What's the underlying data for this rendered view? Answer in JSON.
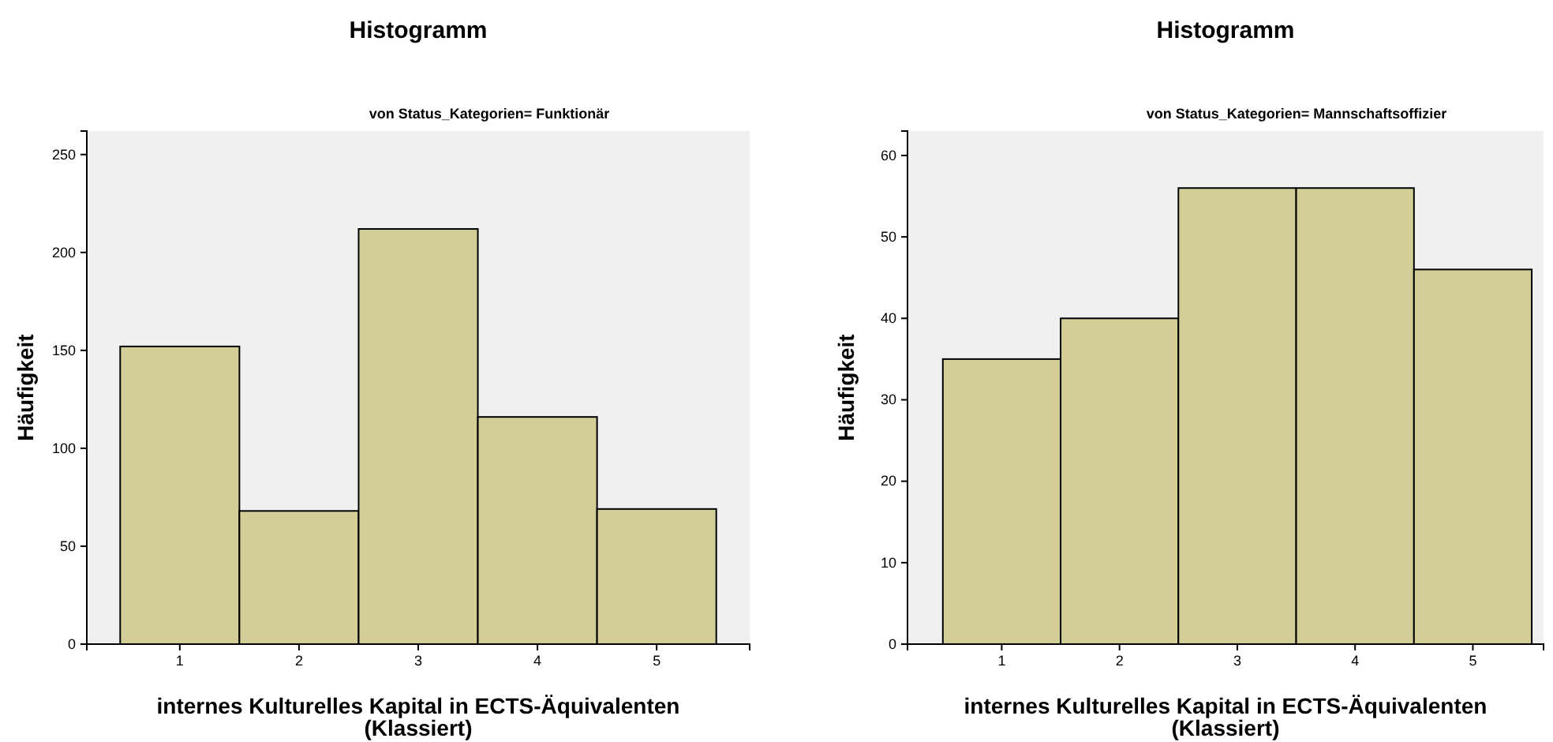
{
  "chart_data": [
    {
      "type": "histogram",
      "title": "Histogramm",
      "subtitle": "von Status_Kategorien= Funktionär",
      "xlabel": "internes Kulturelles Kapital in ECTS-Äquivalenten\n(Klassiert)",
      "ylabel": "Häufigkeit",
      "bins": [
        0.5,
        1.5,
        2.5,
        3.5,
        4.5,
        5.5
      ],
      "values": [
        152,
        68,
        212,
        116,
        69
      ],
      "color": "#d3ce97",
      "xlim": [
        0.22,
        5.78
      ],
      "xticks": [
        1,
        2,
        3,
        4,
        5
      ],
      "ylim": [
        0,
        262
      ],
      "yticks": [
        0,
        50,
        100,
        150,
        200,
        250
      ],
      "grid": false
    },
    {
      "type": "histogram",
      "title": "Histogramm",
      "subtitle": "von Status_Kategorien= Mannschaftsoffizier",
      "xlabel": "internes Kulturelles Kapital in ECTS-Äquivalenten\n(Klassiert)",
      "ylabel": "Häufigkeit",
      "bins": [
        0.5,
        1.5,
        2.5,
        3.5,
        4.5,
        5.5
      ],
      "values": [
        35,
        40,
        56,
        56,
        46
      ],
      "color": "#d3ce97",
      "xlim": [
        0.2,
        5.6
      ],
      "xticks": [
        1,
        2,
        3,
        4,
        5
      ],
      "ylim": [
        0,
        63
      ],
      "yticks": [
        0,
        10,
        20,
        30,
        40,
        50,
        60
      ],
      "grid": false
    }
  ]
}
